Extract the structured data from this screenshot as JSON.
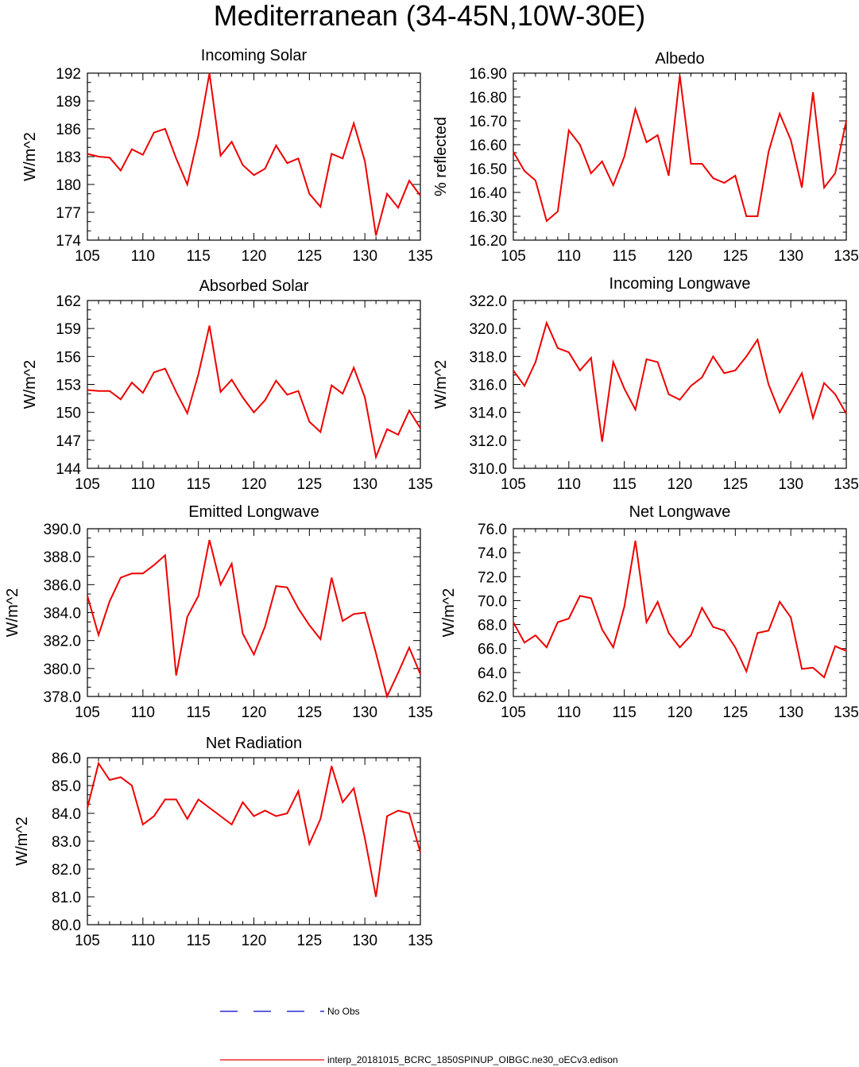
{
  "title": "Mediterranean (34-45N,10W-30E)",
  "colors": {
    "model_line": "#ee0000",
    "obs_line": "#0000cc",
    "axis": "#000000"
  },
  "legend": [
    {
      "label": "No Obs",
      "color": "#0000cc",
      "dash": true
    },
    {
      "label": "interp_20181015_BCRC_1850SPINUP_OIBGC.ne30_oECv3.edison",
      "color": "#ee0000",
      "dash": false
    }
  ],
  "chart_data": [
    {
      "type": "line",
      "title": "Incoming Solar",
      "ylabel": "W/m^2",
      "xlabel": "",
      "xlim": [
        105,
        135
      ],
      "ylim": [
        174,
        192
      ],
      "xticks": [
        "105",
        "110",
        "115",
        "120",
        "125",
        "130",
        "135"
      ],
      "yticks": [
        "174",
        "177",
        "180",
        "183",
        "186",
        "189",
        "192"
      ],
      "x": [
        105,
        106,
        107,
        108,
        109,
        110,
        111,
        112,
        113,
        114,
        115,
        116,
        117,
        118,
        119,
        120,
        121,
        122,
        123,
        124,
        125,
        126,
        127,
        128,
        129,
        130,
        131,
        132,
        133,
        134,
        135
      ],
      "values": [
        183.3,
        183.0,
        182.9,
        181.5,
        183.8,
        183.2,
        185.6,
        186.0,
        182.8,
        180.0,
        185.3,
        192.0,
        183.1,
        184.6,
        182.1,
        181.0,
        181.7,
        184.2,
        182.3,
        182.8,
        179.0,
        177.6,
        183.3,
        182.8,
        186.6,
        182.5,
        174.5,
        179.0,
        177.5,
        180.4,
        178.8
      ]
    },
    {
      "type": "line",
      "title": "Albedo",
      "ylabel": "% reflected",
      "xlabel": "",
      "xlim": [
        105,
        135
      ],
      "ylim": [
        16.2,
        16.9
      ],
      "xticks": [
        "105",
        "110",
        "115",
        "120",
        "125",
        "130",
        "135"
      ],
      "yticks": [
        "16.20",
        "16.30",
        "16.40",
        "16.50",
        "16.60",
        "16.70",
        "16.80",
        "16.90"
      ],
      "x": [
        105,
        106,
        107,
        108,
        109,
        110,
        111,
        112,
        113,
        114,
        115,
        116,
        117,
        118,
        119,
        120,
        121,
        122,
        123,
        124,
        125,
        126,
        127,
        128,
        129,
        130,
        131,
        132,
        133,
        134,
        135
      ],
      "values": [
        16.57,
        16.49,
        16.45,
        16.28,
        16.32,
        16.66,
        16.6,
        16.48,
        16.53,
        16.43,
        16.55,
        16.75,
        16.61,
        16.64,
        16.47,
        16.89,
        16.52,
        16.52,
        16.46,
        16.44,
        16.47,
        16.3,
        16.3,
        16.57,
        16.73,
        16.62,
        16.42,
        16.82,
        16.42,
        16.48,
        16.7
      ]
    },
    {
      "type": "line",
      "title": "Absorbed Solar",
      "ylabel": "W/m^2",
      "xlabel": "",
      "xlim": [
        105,
        135
      ],
      "ylim": [
        144,
        162
      ],
      "xticks": [
        "105",
        "110",
        "115",
        "120",
        "125",
        "130",
        "135"
      ],
      "yticks": [
        "144",
        "147",
        "150",
        "153",
        "156",
        "159",
        "162"
      ],
      "x": [
        105,
        106,
        107,
        108,
        109,
        110,
        111,
        112,
        113,
        114,
        115,
        116,
        117,
        118,
        119,
        120,
        121,
        122,
        123,
        124,
        125,
        126,
        127,
        128,
        129,
        130,
        131,
        132,
        133,
        134,
        135
      ],
      "values": [
        152.4,
        152.3,
        152.3,
        151.4,
        153.2,
        152.1,
        154.3,
        154.7,
        152.2,
        149.9,
        154.1,
        159.3,
        152.2,
        153.5,
        151.6,
        150.0,
        151.3,
        153.4,
        151.9,
        152.3,
        149.0,
        147.9,
        152.9,
        152.0,
        154.8,
        151.6,
        145.2,
        148.2,
        147.6,
        150.2,
        148.3
      ]
    },
    {
      "type": "line",
      "title": "Incoming Longwave",
      "ylabel": "W/m^2",
      "xlabel": "",
      "xlim": [
        105,
        135
      ],
      "ylim": [
        310.0,
        322.0
      ],
      "xticks": [
        "105",
        "110",
        "115",
        "120",
        "125",
        "130",
        "135"
      ],
      "yticks": [
        "310.0",
        "312.0",
        "314.0",
        "316.0",
        "318.0",
        "320.0",
        "322.0"
      ],
      "x": [
        105,
        106,
        107,
        108,
        109,
        110,
        111,
        112,
        113,
        114,
        115,
        116,
        117,
        118,
        119,
        120,
        121,
        122,
        123,
        124,
        125,
        126,
        127,
        128,
        129,
        130,
        131,
        132,
        133,
        134,
        135
      ],
      "values": [
        317.0,
        315.9,
        317.6,
        320.4,
        318.6,
        318.3,
        317.0,
        317.9,
        311.9,
        317.6,
        315.7,
        314.2,
        317.8,
        317.6,
        315.3,
        314.9,
        315.9,
        316.5,
        318.0,
        316.8,
        317.0,
        318.0,
        319.2,
        316.0,
        314.0,
        315.4,
        316.8,
        313.6,
        316.1,
        315.3,
        313.9
      ]
    },
    {
      "type": "line",
      "title": "Emitted Longwave",
      "ylabel": "W/m^2",
      "xlabel": "",
      "xlim": [
        105,
        135
      ],
      "ylim": [
        378.0,
        390.0
      ],
      "xticks": [
        "105",
        "110",
        "115",
        "120",
        "125",
        "130",
        "135"
      ],
      "yticks": [
        "378.0",
        "380.0",
        "382.0",
        "384.0",
        "386.0",
        "388.0",
        "390.0"
      ],
      "x": [
        105,
        106,
        107,
        108,
        109,
        110,
        111,
        112,
        113,
        114,
        115,
        116,
        117,
        118,
        119,
        120,
        121,
        122,
        123,
        124,
        125,
        126,
        127,
        128,
        129,
        130,
        131,
        132,
        133,
        134,
        135
      ],
      "values": [
        385.2,
        382.4,
        384.8,
        386.5,
        386.8,
        386.8,
        387.4,
        388.1,
        379.5,
        383.7,
        385.2,
        389.2,
        386.0,
        387.5,
        382.5,
        381.0,
        383.0,
        385.9,
        385.8,
        384.3,
        383.1,
        382.1,
        386.5,
        383.4,
        383.9,
        384.0,
        381.1,
        378.0,
        379.7,
        381.5,
        379.6
      ]
    },
    {
      "type": "line",
      "title": "Net Longwave",
      "ylabel": "W/m^2",
      "xlabel": "",
      "xlim": [
        105,
        135
      ],
      "ylim": [
        62.0,
        76.0
      ],
      "xticks": [
        "105",
        "110",
        "115",
        "120",
        "125",
        "130",
        "135"
      ],
      "yticks": [
        "62.0",
        "64.0",
        "66.0",
        "68.0",
        "70.0",
        "72.0",
        "74.0",
        "76.0"
      ],
      "x": [
        105,
        106,
        107,
        108,
        109,
        110,
        111,
        112,
        113,
        114,
        115,
        116,
        117,
        118,
        119,
        120,
        121,
        122,
        123,
        124,
        125,
        126,
        127,
        128,
        129,
        130,
        131,
        132,
        133,
        134,
        135
      ],
      "values": [
        68.2,
        66.5,
        67.1,
        66.1,
        68.2,
        68.5,
        70.4,
        70.2,
        67.6,
        66.1,
        69.5,
        75.0,
        68.2,
        69.9,
        67.3,
        66.1,
        67.1,
        69.4,
        67.8,
        67.5,
        66.1,
        64.1,
        67.3,
        67.5,
        69.9,
        68.6,
        64.3,
        64.4,
        63.6,
        66.2,
        65.8
      ]
    },
    {
      "type": "line",
      "title": "Net Radiation",
      "ylabel": "W/m^2",
      "xlabel": "",
      "xlim": [
        105,
        135
      ],
      "ylim": [
        80.0,
        86.0
      ],
      "xticks": [
        "105",
        "110",
        "115",
        "120",
        "125",
        "130",
        "135"
      ],
      "yticks": [
        "80.0",
        "81.0",
        "82.0",
        "83.0",
        "84.0",
        "85.0",
        "86.0"
      ],
      "x": [
        105,
        106,
        107,
        108,
        109,
        110,
        111,
        112,
        113,
        114,
        115,
        116,
        117,
        118,
        119,
        120,
        121,
        122,
        123,
        124,
        125,
        126,
        127,
        128,
        129,
        130,
        131,
        132,
        133,
        134,
        135
      ],
      "values": [
        84.2,
        85.8,
        85.2,
        85.3,
        85.0,
        83.6,
        83.9,
        84.5,
        84.5,
        83.8,
        84.5,
        84.2,
        83.9,
        83.6,
        84.4,
        83.9,
        84.1,
        83.9,
        84.0,
        84.8,
        82.9,
        83.8,
        85.7,
        84.4,
        84.9,
        83.1,
        81.0,
        83.9,
        84.1,
        84.0,
        82.6
      ]
    }
  ]
}
